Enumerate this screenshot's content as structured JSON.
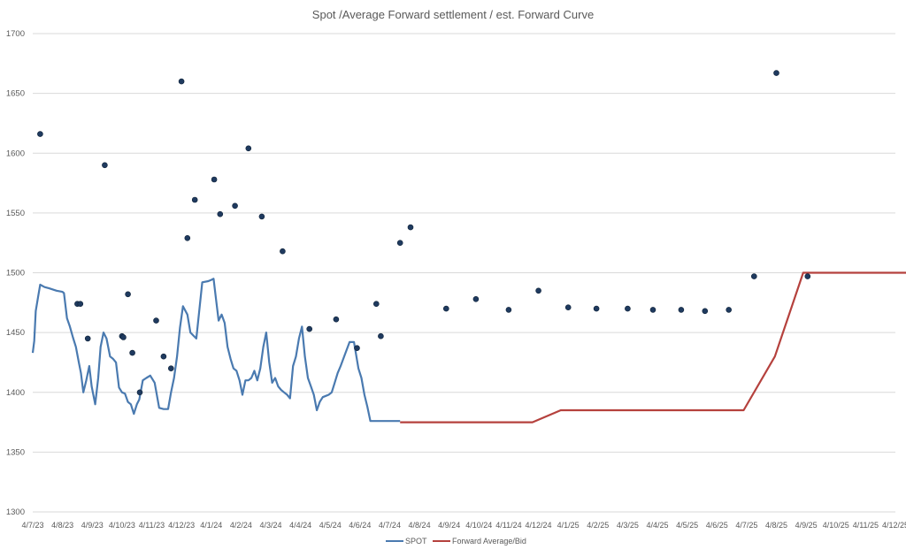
{
  "chart_data": {
    "type": "line",
    "title": "Spot /Average Forward settlement / est. Forward Curve",
    "xlabel": "",
    "ylabel": "",
    "ylim": [
      1300,
      1700
    ],
    "y_ticks": [
      1300,
      1350,
      1400,
      1450,
      1500,
      1550,
      1600,
      1650,
      1700
    ],
    "x_tick_labels": [
      "4/7/23",
      "4/8/23",
      "4/9/23",
      "4/10/23",
      "4/11/23",
      "4/12/23",
      "4/1/24",
      "4/2/24",
      "4/3/24",
      "4/4/24",
      "4/5/24",
      "4/6/24",
      "4/7/24",
      "4/8/24",
      "4/9/24",
      "4/10/24",
      "4/11/24",
      "4/12/24",
      "4/1/25",
      "4/2/25",
      "4/3/25",
      "4/4/25",
      "4/5/25",
      "4/6/25",
      "4/7/25",
      "4/8/25",
      "4/9/25",
      "4/10/25",
      "4/11/25",
      "4/12/25"
    ],
    "grid": "horizontal",
    "legend_position": "bottom",
    "colors": {
      "spot": "#4a7ab0",
      "forward": "#b5413d",
      "points": "#1f3a5f",
      "grid": "#d9d9d9"
    },
    "series": [
      {
        "name": "SPOT",
        "type": "line",
        "x": [
          0,
          0.05,
          0.1,
          0.18,
          0.25,
          0.4,
          0.55,
          0.8,
          1.0,
          1.05,
          1.15,
          1.25,
          1.35,
          1.45,
          1.55,
          1.62,
          1.7,
          1.8,
          1.9,
          1.98,
          2.1,
          2.2,
          2.28,
          2.38,
          2.48,
          2.6,
          2.7,
          2.8,
          2.9,
          3.0,
          3.1,
          3.2,
          3.3,
          3.4,
          3.5,
          3.58,
          3.7,
          3.82,
          3.95,
          4.1,
          4.25,
          4.4,
          4.55,
          4.65,
          4.75,
          4.85,
          4.95,
          5.05,
          5.2,
          5.3,
          5.5,
          5.7,
          5.9,
          6.0,
          6.08,
          6.15,
          6.25,
          6.35,
          6.45,
          6.55,
          6.65,
          6.75,
          6.85,
          6.95,
          7.05,
          7.15,
          7.25,
          7.35,
          7.45,
          7.55,
          7.65,
          7.75,
          7.85,
          7.95,
          8.05,
          8.15,
          8.25,
          8.35,
          8.45,
          8.55,
          8.65,
          8.75,
          8.85,
          8.95,
          9.05,
          9.15,
          9.25,
          9.35,
          9.45,
          9.55,
          9.65,
          9.75,
          9.85,
          9.95,
          10.05,
          10.15,
          10.25,
          10.35,
          10.5,
          10.65,
          10.8,
          10.95,
          11.05,
          11.15,
          11.25,
          11.35,
          11.45,
          11.55,
          11.65,
          11.75,
          11.85,
          11.95,
          12.05,
          12.15,
          12.25,
          12.35
        ],
        "y": [
          1433,
          1443,
          1468,
          1480,
          1490,
          1488,
          1487,
          1485,
          1484,
          1483,
          1462,
          1455,
          1446,
          1438,
          1425,
          1416,
          1400,
          1410,
          1422,
          1405,
          1390,
          1412,
          1438,
          1450,
          1445,
          1430,
          1428,
          1425,
          1404,
          1400,
          1399,
          1392,
          1390,
          1382,
          1390,
          1394,
          1410,
          1412,
          1414,
          1408,
          1387,
          1386,
          1386,
          1400,
          1412,
          1430,
          1454,
          1472,
          1465,
          1450,
          1445,
          1492,
          1493,
          1494,
          1495,
          1480,
          1460,
          1465,
          1458,
          1438,
          1428,
          1420,
          1418,
          1410,
          1398,
          1410,
          1410,
          1412,
          1418,
          1410,
          1420,
          1438,
          1450,
          1425,
          1408,
          1412,
          1405,
          1402,
          1400,
          1398,
          1395,
          1422,
          1430,
          1445,
          1455,
          1430,
          1412,
          1405,
          1398,
          1385,
          1392,
          1396,
          1397,
          1398,
          1400,
          1408,
          1416,
          1422,
          1432,
          1442,
          1442,
          1420,
          1412,
          1398,
          1388,
          1376,
          1376,
          1376,
          1376,
          1376,
          1376,
          1376,
          1376,
          1376,
          1376,
          1376
        ],
        "dash": "solid"
      },
      {
        "name": "Forward Average/Bid",
        "type": "line",
        "x": [
          12.35,
          16.8,
          17.75,
          23.9,
          24.95,
          25.9,
          26.35,
          29.95
        ],
        "y": [
          1375,
          1375,
          1385,
          1385,
          1430,
          1500,
          1500,
          1500
        ]
      },
      {
        "name": "",
        "type": "scatter",
        "x": [
          0.25,
          1.5,
          1.6,
          1.85,
          2.42,
          3.0,
          3.05,
          3.2,
          3.35,
          3.6,
          4.15,
          4.4,
          4.65,
          5.0,
          5.2,
          5.45,
          6.1,
          6.3,
          6.8,
          7.25,
          7.7,
          8.4,
          9.3,
          10.2,
          10.9,
          11.55,
          11.7,
          12.35,
          12.7,
          13.9,
          14.9,
          16.0,
          17.0,
          18.0,
          18.95,
          20.0,
          20.85,
          21.8,
          22.6,
          23.4,
          24.25,
          25.0,
          26.05
        ],
        "y": [
          1616,
          1474,
          1474,
          1445,
          1590,
          1447,
          1446,
          1482,
          1433,
          1400,
          1460,
          1430,
          1420,
          1660,
          1529,
          1561,
          1578,
          1549,
          1556,
          1604,
          1547,
          1518,
          1453,
          1461,
          1437,
          1474,
          1447,
          1525,
          1538,
          1470,
          1478,
          1469,
          1485,
          1471,
          1470,
          1470,
          1469,
          1469,
          1468,
          1469,
          1497,
          1667,
          1497
        ]
      }
    ]
  }
}
